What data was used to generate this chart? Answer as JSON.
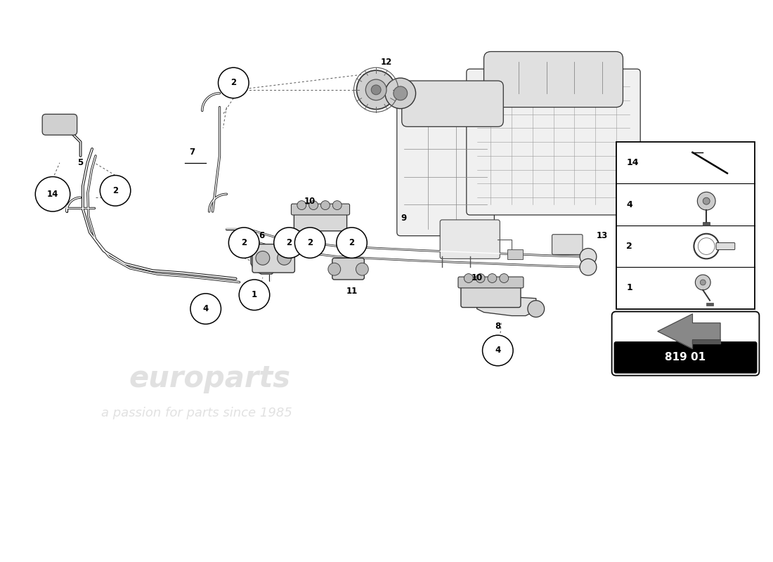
{
  "bg_color": "#ffffff",
  "part_number": "819 01",
  "watermark1": "europarts",
  "watermark2": "a passion for parts since 1985",
  "legend_items": [
    {
      "num": "14"
    },
    {
      "num": "4"
    },
    {
      "num": "2"
    },
    {
      "num": "1"
    }
  ],
  "hose_color": "#1a1a1a",
  "label_color": "#111111",
  "dash_color": "#555555"
}
